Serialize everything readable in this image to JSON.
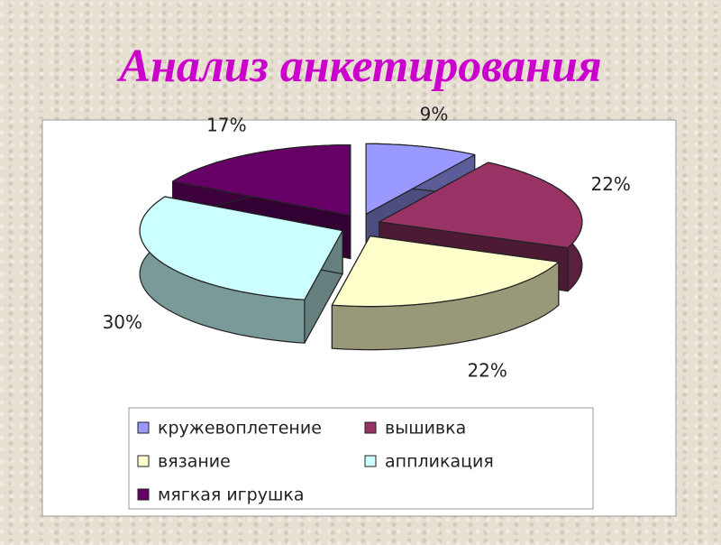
{
  "chart_data": {
    "type": "pie3d",
    "title": "Анализ анкетирования",
    "categories": [
      "кружевоплетение",
      "вышивка",
      "вязание",
      "аппликация",
      "мягкая игрушка"
    ],
    "values": [
      9,
      22,
      22,
      30,
      17
    ],
    "value_labels": [
      "9%",
      "22%",
      "22%",
      "30%",
      "17%"
    ],
    "colors": [
      "#9999ff",
      "#993366",
      "#ffffcc",
      "#ccffff",
      "#660066"
    ],
    "legend": "bottom"
  }
}
